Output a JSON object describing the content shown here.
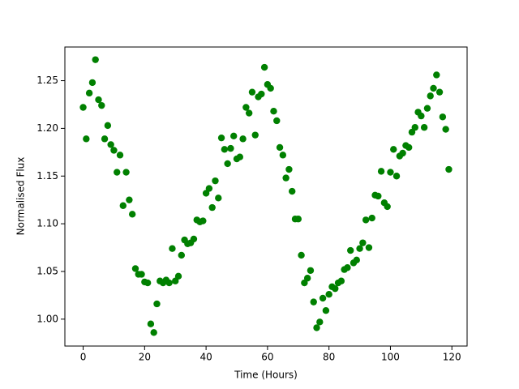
{
  "chart_data": {
    "type": "scatter",
    "xlabel": "Time (Hours)",
    "ylabel": "Normalised Flux",
    "color": "#008000",
    "xlim": [
      -5.95,
      124.95
    ],
    "ylim": [
      0.9718,
      1.2853
    ],
    "xticks": [
      0,
      20,
      40,
      60,
      80,
      100,
      120
    ],
    "yticks": [
      {
        "value": 1.0,
        "label": "1.00"
      },
      1.05,
      {
        "value": 1.1,
        "label": "1.10"
      },
      1.15,
      {
        "value": 1.2,
        "label": "1.20"
      },
      1.25
    ],
    "x": [
      0,
      1,
      2,
      3,
      4,
      5,
      6,
      7,
      8,
      9,
      10,
      11,
      12,
      13,
      14,
      15,
      16,
      17,
      18,
      19,
      20,
      21,
      22,
      23,
      24,
      25,
      26,
      27,
      28,
      29,
      30,
      31,
      32,
      33,
      34,
      35,
      36,
      37,
      38,
      39,
      40,
      41,
      42,
      43,
      44,
      45,
      46,
      47,
      48,
      49,
      50,
      51,
      52,
      53,
      54,
      55,
      56,
      57,
      58,
      59,
      60,
      61,
      62,
      63,
      64,
      65,
      66,
      67,
      68,
      69,
      70,
      71,
      72,
      73,
      74,
      75,
      76,
      77,
      78,
      79,
      80,
      81,
      82,
      83,
      84,
      85,
      86,
      87,
      88,
      89,
      90,
      91,
      92,
      93,
      94,
      95,
      96,
      97,
      98,
      99,
      100,
      101,
      102,
      103,
      104,
      105,
      106,
      107,
      108,
      109,
      110,
      111,
      112,
      113,
      114,
      115,
      116,
      117,
      118,
      119
    ],
    "values": [
      1.222,
      1.189,
      1.237,
      1.248,
      1.272,
      1.23,
      1.224,
      1.189,
      1.203,
      1.183,
      1.177,
      1.154,
      1.172,
      1.119,
      1.154,
      1.125,
      1.11,
      1.053,
      1.047,
      1.047,
      1.039,
      1.038,
      0.995,
      0.986,
      1.016,
      1.04,
      1.038,
      1.041,
      1.038,
      1.074,
      1.04,
      1.045,
      1.067,
      1.083,
      1.079,
      1.08,
      1.084,
      1.104,
      1.102,
      1.103,
      1.132,
      1.137,
      1.117,
      1.145,
      1.127,
      1.19,
      1.178,
      1.163,
      1.179,
      1.192,
      1.168,
      1.17,
      1.189,
      1.222,
      1.216,
      1.238,
      1.193,
      1.233,
      1.236,
      1.264,
      1.246,
      1.242,
      1.218,
      1.208,
      1.18,
      1.172,
      1.148,
      1.157,
      1.134,
      1.105,
      1.105,
      1.067,
      1.038,
      1.043,
      1.051,
      1.018,
      0.991,
      0.997,
      1.022,
      1.009,
      1.026,
      1.034,
      1.032,
      1.038,
      1.04,
      1.052,
      1.054,
      1.072,
      1.059,
      1.062,
      1.074,
      1.08,
      1.104,
      1.075,
      1.106,
      1.13,
      1.129,
      1.155,
      1.122,
      1.118,
      1.154,
      1.178,
      1.15,
      1.171,
      1.174,
      1.182,
      1.18,
      1.196,
      1.201,
      1.217,
      1.213,
      1.201,
      1.221,
      1.234,
      1.242,
      1.256,
      1.238,
      1.212,
      1.199,
      1.157
    ]
  }
}
